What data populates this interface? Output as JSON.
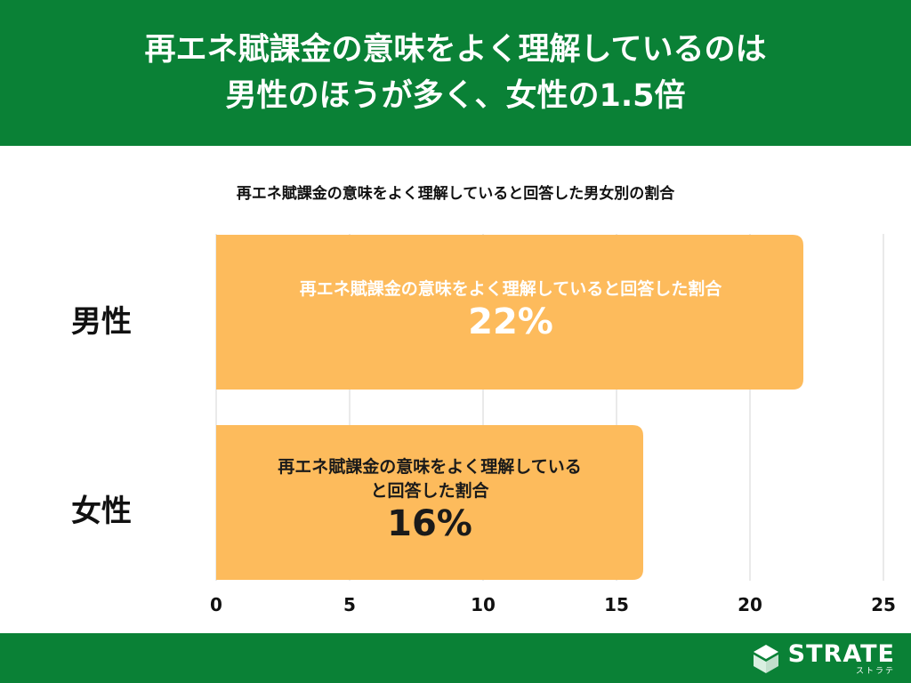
{
  "header": {
    "line1": "再エネ賦課金の意味をよく理解しているのは",
    "line2": "男性のほうが多く、女性の1.5倍"
  },
  "chart_data": {
    "type": "bar",
    "orientation": "horizontal",
    "title": "再エネ賦課金の意味をよく理解していると回答した男女別の割合",
    "categories": [
      "男性",
      "女性"
    ],
    "values": [
      22,
      16
    ],
    "bar_labels": [
      {
        "label": "再エネ賦課金の意味をよく理解していると回答した割合",
        "value": "22%"
      },
      {
        "label_line1": "再エネ賦課金の意味をよく理解している",
        "label_line2": "と回答した割合",
        "value": "16%"
      }
    ],
    "xlim": [
      0,
      25
    ],
    "xticks": [
      "0",
      "5",
      "10",
      "15",
      "20",
      "25"
    ],
    "grid": true,
    "bar_color": "#fdbb5c"
  },
  "footer": {
    "logo_name": "STRATE",
    "logo_kana": "ストラテ"
  }
}
